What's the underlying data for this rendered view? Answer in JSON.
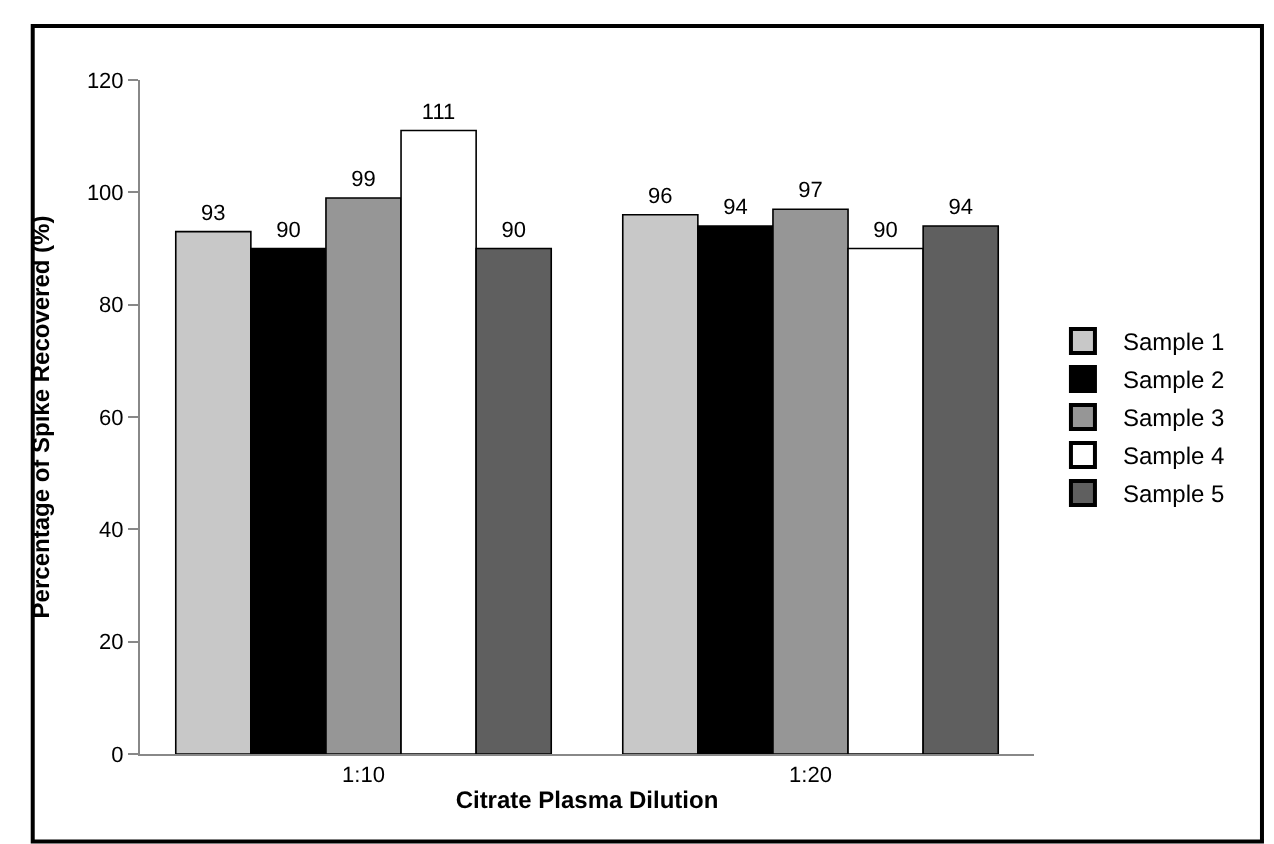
{
  "chart_data": {
    "type": "bar",
    "xlabel": "Citrate Plasma Dilution",
    "ylabel": "Percentage of Spike Recovered (%)",
    "categories": [
      "1:10",
      "1:20"
    ],
    "series": [
      {
        "name": "Sample 1",
        "color": "#c8c8c8",
        "values": [
          93,
          96
        ]
      },
      {
        "name": "Sample 2",
        "color": "#000000",
        "values": [
          90,
          94
        ]
      },
      {
        "name": "Sample 3",
        "color": "#969696",
        "values": [
          99,
          97
        ]
      },
      {
        "name": "Sample 4",
        "color": "#ffffff",
        "values": [
          111,
          90
        ]
      },
      {
        "name": "Sample 5",
        "color": "#5f5f5f",
        "values": [
          90,
          94
        ]
      }
    ],
    "ylim": [
      0,
      120
    ],
    "yticks": [
      0,
      20,
      40,
      60,
      80,
      100,
      120
    ],
    "legend": "right",
    "data_labels": true
  }
}
